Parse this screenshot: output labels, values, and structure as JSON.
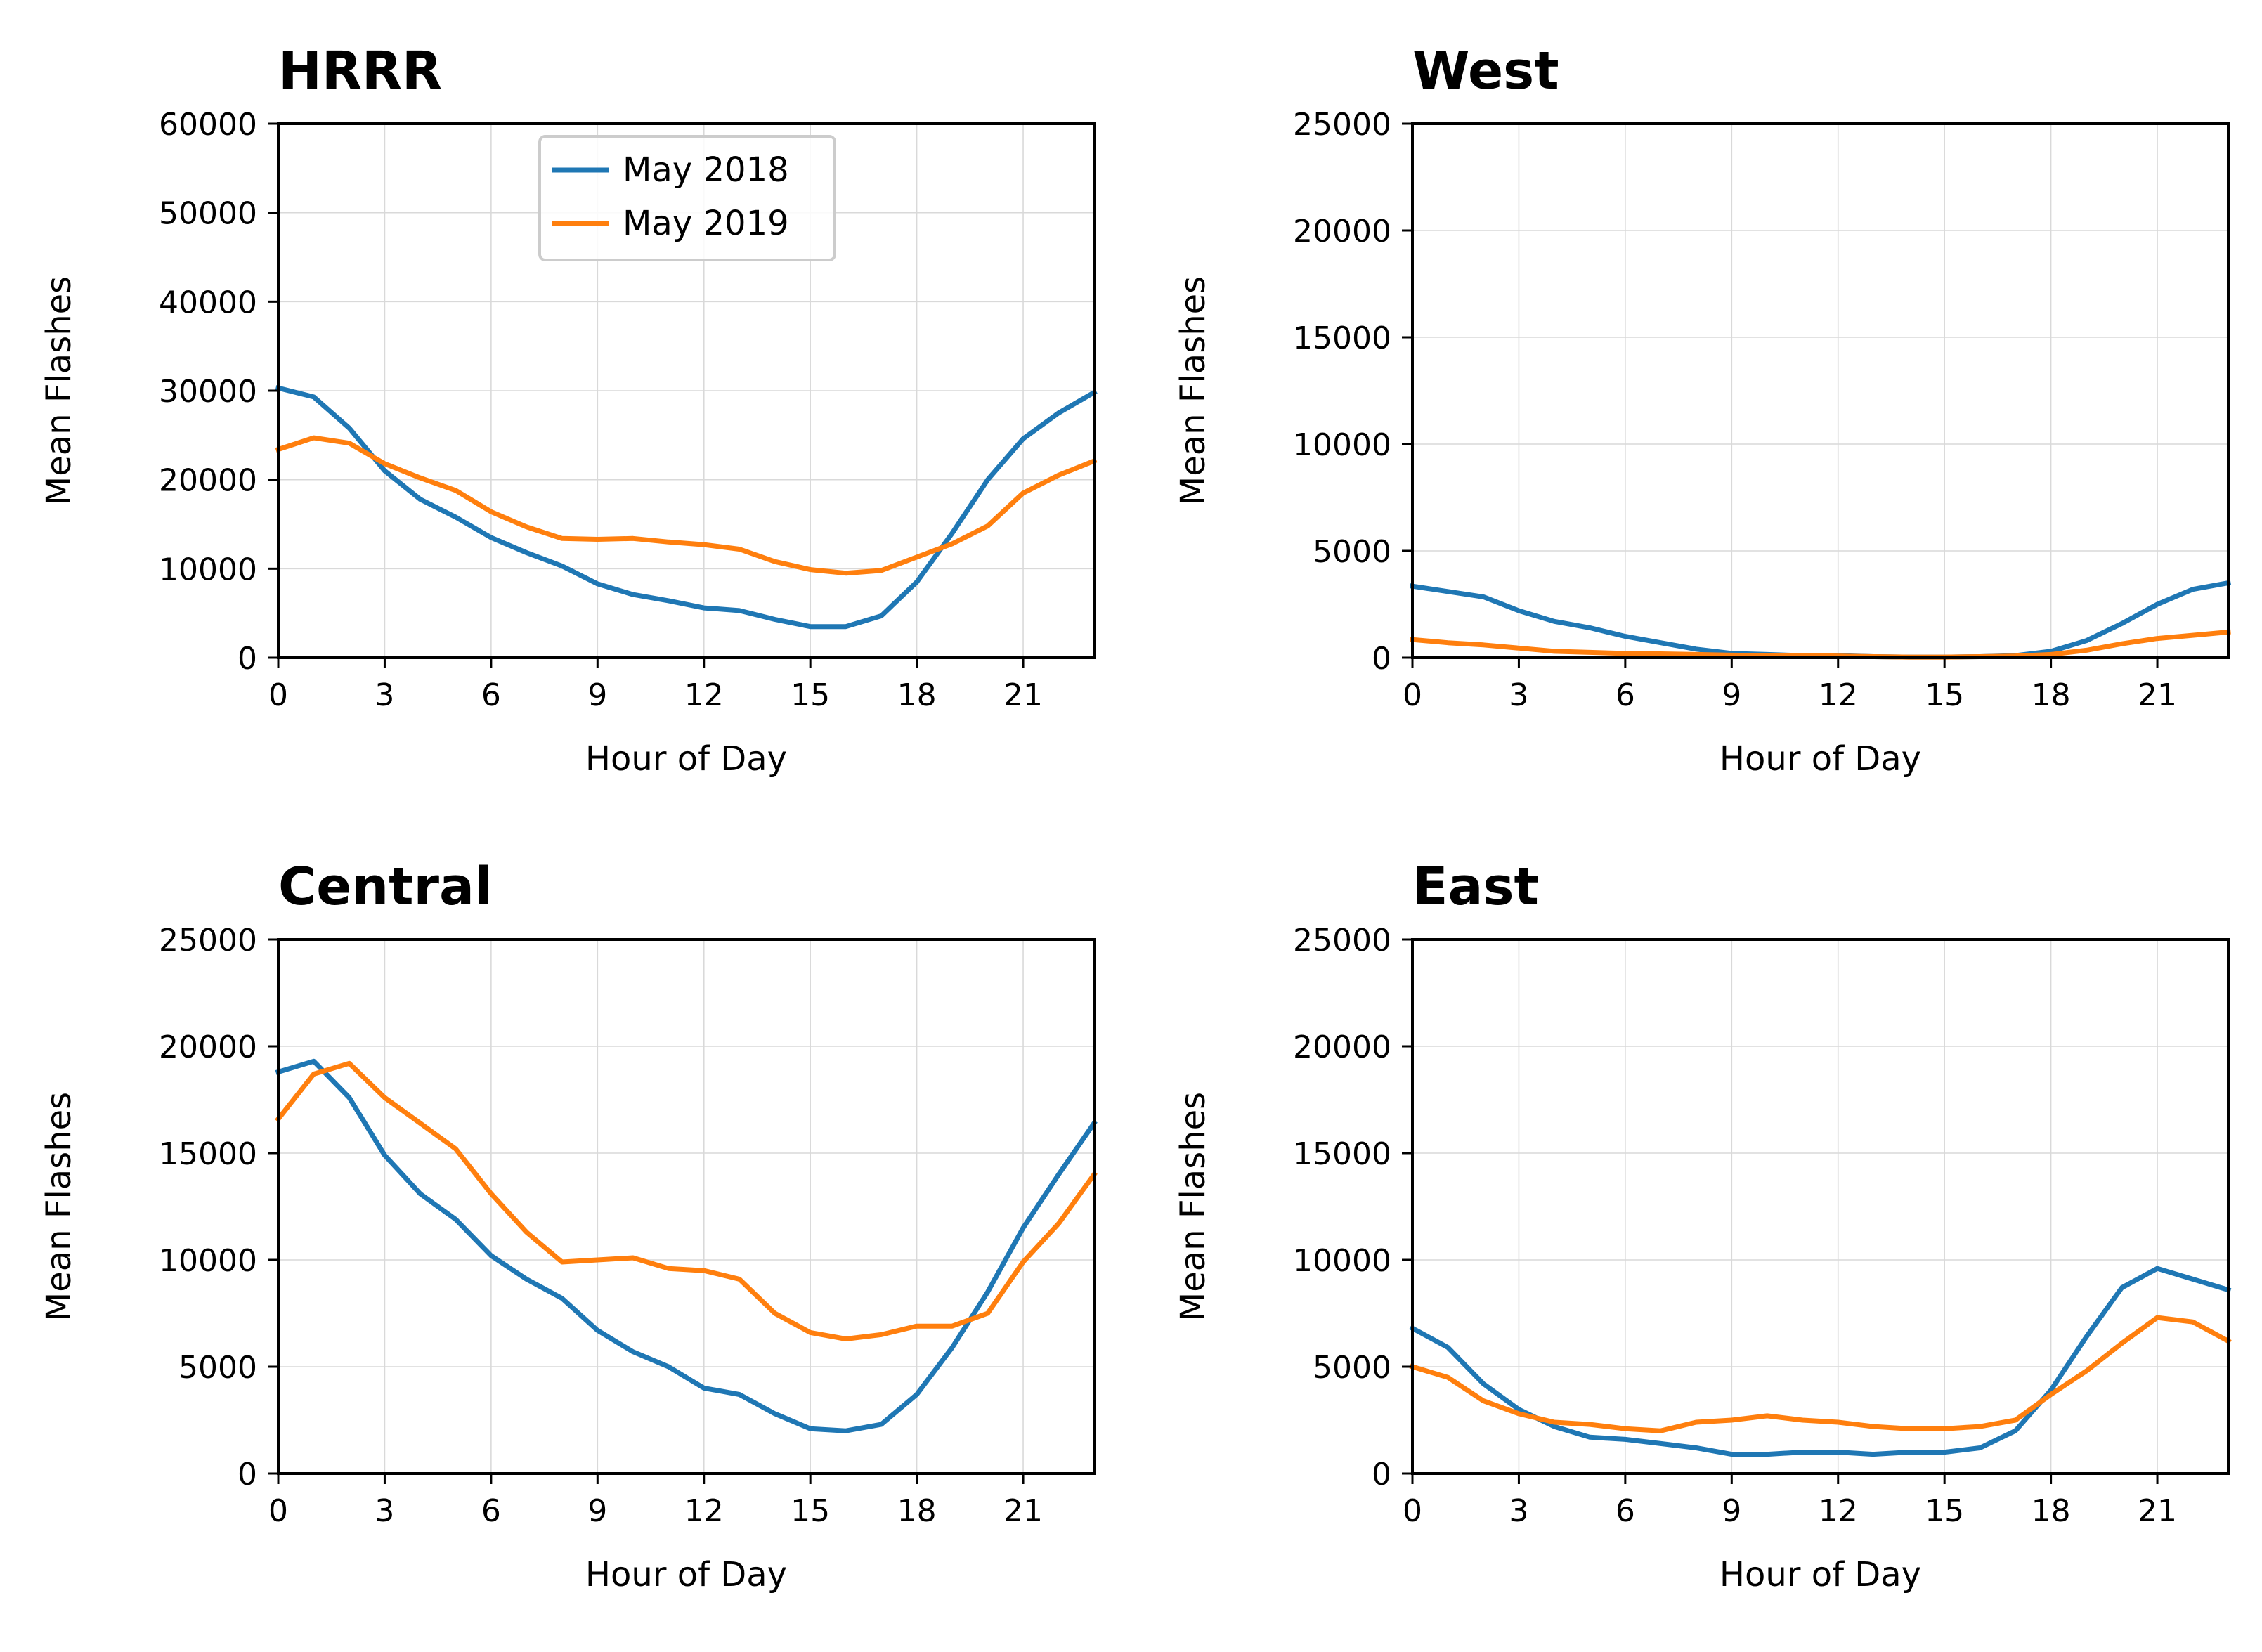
{
  "chart_data": [
    {
      "type": "line",
      "title": "HRRR",
      "xlabel": "Hour of Day",
      "ylabel": "Mean Flashes",
      "xlim": [
        0,
        23
      ],
      "ylim": [
        0,
        60000
      ],
      "xticks": [
        0,
        3,
        6,
        9,
        12,
        15,
        18,
        21
      ],
      "yticks": [
        0,
        10000,
        20000,
        30000,
        40000,
        50000,
        60000
      ],
      "grid": true,
      "legend": "upper-center",
      "x": [
        0,
        1,
        2,
        3,
        4,
        5,
        6,
        7,
        8,
        9,
        10,
        11,
        12,
        13,
        14,
        15,
        16,
        17,
        18,
        19,
        20,
        21,
        22,
        23
      ],
      "series": [
        {
          "name": "May 2018",
          "color": "#1f77b4",
          "values": [
            30300,
            29300,
            25800,
            21000,
            17800,
            15800,
            13500,
            11800,
            10300,
            8300,
            7100,
            6400,
            5600,
            5300,
            4300,
            3500,
            3500,
            4700,
            8500,
            14000,
            20000,
            24600,
            27500,
            29800
          ]
        },
        {
          "name": "May 2019",
          "color": "#ff7f0e",
          "values": [
            23400,
            24700,
            24100,
            21800,
            20200,
            18800,
            16400,
            14700,
            13400,
            13300,
            13400,
            13000,
            12700,
            12200,
            10800,
            9900,
            9500,
            9800,
            11300,
            12800,
            14800,
            18500,
            20500,
            22100
          ]
        }
      ]
    },
    {
      "type": "line",
      "title": "West",
      "xlabel": "Hour of Day",
      "ylabel": "Mean Flashes",
      "xlim": [
        0,
        23
      ],
      "ylim": [
        0,
        25000
      ],
      "xticks": [
        0,
        3,
        6,
        9,
        12,
        15,
        18,
        21
      ],
      "yticks": [
        0,
        5000,
        10000,
        15000,
        20000,
        25000
      ],
      "grid": true,
      "x": [
        0,
        1,
        2,
        3,
        4,
        5,
        6,
        7,
        8,
        9,
        10,
        11,
        12,
        13,
        14,
        15,
        16,
        17,
        18,
        19,
        20,
        21,
        22,
        23
      ],
      "series": [
        {
          "color": "#1f77b4",
          "values": [
            3350,
            3100,
            2850,
            2200,
            1700,
            1400,
            1000,
            700,
            400,
            200,
            150,
            100,
            100,
            50,
            30,
            30,
            50,
            100,
            300,
            800,
            1600,
            2500,
            3200,
            3500
          ]
        },
        {
          "color": "#ff7f0e",
          "values": [
            850,
            700,
            600,
            450,
            300,
            250,
            200,
            180,
            150,
            120,
            100,
            100,
            80,
            50,
            30,
            30,
            50,
            80,
            150,
            350,
            650,
            900,
            1050,
            1200
          ]
        }
      ]
    },
    {
      "type": "line",
      "title": "Central",
      "xlabel": "Hour of Day",
      "ylabel": "Mean Flashes",
      "xlim": [
        0,
        23
      ],
      "ylim": [
        0,
        25000
      ],
      "xticks": [
        0,
        3,
        6,
        9,
        12,
        15,
        18,
        21
      ],
      "yticks": [
        0,
        5000,
        10000,
        15000,
        20000,
        25000
      ],
      "grid": true,
      "x": [
        0,
        1,
        2,
        3,
        4,
        5,
        6,
        7,
        8,
        9,
        10,
        11,
        12,
        13,
        14,
        15,
        16,
        17,
        18,
        19,
        20,
        21,
        22,
        23
      ],
      "series": [
        {
          "color": "#1f77b4",
          "values": [
            18800,
            19300,
            17600,
            14900,
            13100,
            11900,
            10200,
            9100,
            8200,
            6700,
            5700,
            5000,
            4000,
            3700,
            2800,
            2100,
            2000,
            2300,
            3700,
            5900,
            8500,
            11500,
            14000,
            16400
          ]
        },
        {
          "color": "#ff7f0e",
          "values": [
            16600,
            18700,
            19200,
            17600,
            16400,
            15200,
            13100,
            11300,
            9900,
            10000,
            10100,
            9600,
            9500,
            9100,
            7500,
            6600,
            6300,
            6500,
            6900,
            6900,
            7500,
            9900,
            11700,
            14000
          ]
        }
      ]
    },
    {
      "type": "line",
      "title": "East",
      "xlabel": "Hour of Day",
      "ylabel": "Mean Flashes",
      "xlim": [
        0,
        23
      ],
      "ylim": [
        0,
        25000
      ],
      "xticks": [
        0,
        3,
        6,
        9,
        12,
        15,
        18,
        21
      ],
      "yticks": [
        0,
        5000,
        10000,
        15000,
        20000,
        25000
      ],
      "grid": true,
      "x": [
        0,
        1,
        2,
        3,
        4,
        5,
        6,
        7,
        8,
        9,
        10,
        11,
        12,
        13,
        14,
        15,
        16,
        17,
        18,
        19,
        20,
        21,
        22,
        23
      ],
      "series": [
        {
          "color": "#1f77b4",
          "values": [
            6800,
            5900,
            4200,
            3000,
            2200,
            1700,
            1600,
            1400,
            1200,
            900,
            900,
            1000,
            1000,
            900,
            1000,
            1000,
            1200,
            2000,
            3900,
            6400,
            8700,
            9600,
            9100,
            8600
          ]
        },
        {
          "color": "#ff7f0e",
          "values": [
            5000,
            4500,
            3400,
            2800,
            2400,
            2300,
            2100,
            2000,
            2400,
            2500,
            2700,
            2500,
            2400,
            2200,
            2100,
            2100,
            2200,
            2500,
            3700,
            4800,
            6100,
            7300,
            7100,
            6200
          ]
        }
      ]
    }
  ]
}
